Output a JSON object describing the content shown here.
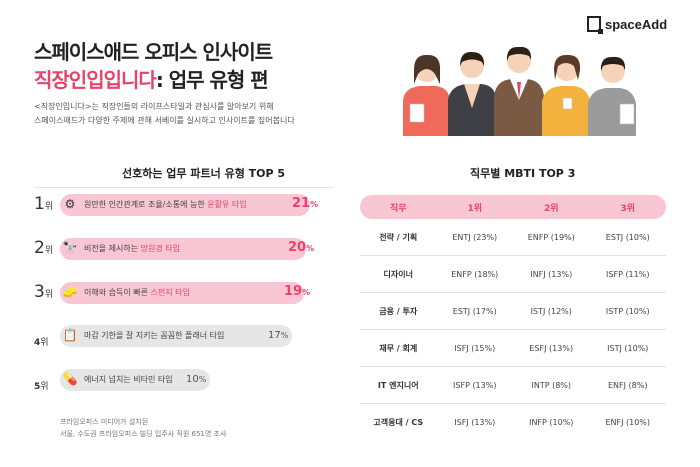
{
  "header": {
    "title_line1": "스페이스애드 오피스 인사이트",
    "title_line2_highlight": "직장인입입니다",
    "title_line2_rest": ": 업무 유형 편",
    "intro_line1": "<직장인입니다>는 직장인들의 라이프스타일과 관심사를 알아보기 위해",
    "intro_line2": "스페이스애드가 다양한 주제에 관해 서베이를 실시하고 인사이트를 짚어봅니다"
  },
  "logo": {
    "text": "spaceAdd",
    "icon": "spaceadd-logo-icon"
  },
  "colors": {
    "accent": "#e8436b",
    "bar_hi": "#f9c6d3",
    "bar_lo": "#e6e6e6"
  },
  "partner": {
    "title": "선호하는 업무 파트너 유형 TOP 5",
    "items": [
      {
        "rank": "1",
        "rank_suffix": "위",
        "text_pre": "원만한 인간관계로 조율/소통에 능한 ",
        "text_hl": "윤활유 타입",
        "pct": "21",
        "pct_unit": "%",
        "value": 21,
        "icon": "gear-icon"
      },
      {
        "rank": "2",
        "rank_suffix": "위",
        "text_pre": "비전을 제시하는 ",
        "text_hl": "망원경 타입",
        "pct": "20",
        "pct_unit": "%",
        "value": 20,
        "icon": "telescope-icon"
      },
      {
        "rank": "3",
        "rank_suffix": "위",
        "text_pre": "이해와 습득이 빠른 ",
        "text_hl": "스펀지 타입",
        "pct": "19",
        "pct_unit": "%",
        "value": 19,
        "icon": "sponge-icon"
      },
      {
        "rank": "4",
        "rank_suffix": "위",
        "text_pre": "마감 기한을 잘 지키는 꼼꼼한 플래너 타입",
        "text_hl": "",
        "pct": "17",
        "pct_unit": "%",
        "value": 17,
        "icon": "planner-icon"
      },
      {
        "rank": "5",
        "rank_suffix": "위",
        "text_pre": "에너지 넘치는 비타민 타입",
        "text_hl": "",
        "pct": "10",
        "pct_unit": "%",
        "value": 10,
        "icon": "vitamin-icon"
      }
    ],
    "footnote_line1": "프라임오피스 미디어가 설치된",
    "footnote_line2": "서울, 수도권 프라임오피스 빌딩 입주사 직원 651명 조사"
  },
  "mbti": {
    "title": "직무별 MBTI TOP 3",
    "headers": [
      "직무",
      "1위",
      "2위",
      "3위"
    ],
    "rows": [
      [
        "전략 / 기획",
        "ENTJ (23%)",
        "ENFP (19%)",
        "ESTJ (10%)"
      ],
      [
        "디자이너",
        "ENFP (18%)",
        "INFJ (13%)",
        "ISFP (11%)"
      ],
      [
        "금융 / 투자",
        "ESTJ (17%)",
        "ISTJ (12%)",
        "ISTP (10%)"
      ],
      [
        "재무 / 회계",
        "ISFJ (15%)",
        "ESFJ (13%)",
        "ISTJ (10%)"
      ],
      [
        "IT 엔지니어",
        "ISFP (13%)",
        "INTP (8%)",
        "ENFJ (8%)"
      ],
      [
        "고객응대 / CS",
        "ISFJ (13%)",
        "INFP (10%)",
        "ENFJ (10%)"
      ]
    ]
  }
}
